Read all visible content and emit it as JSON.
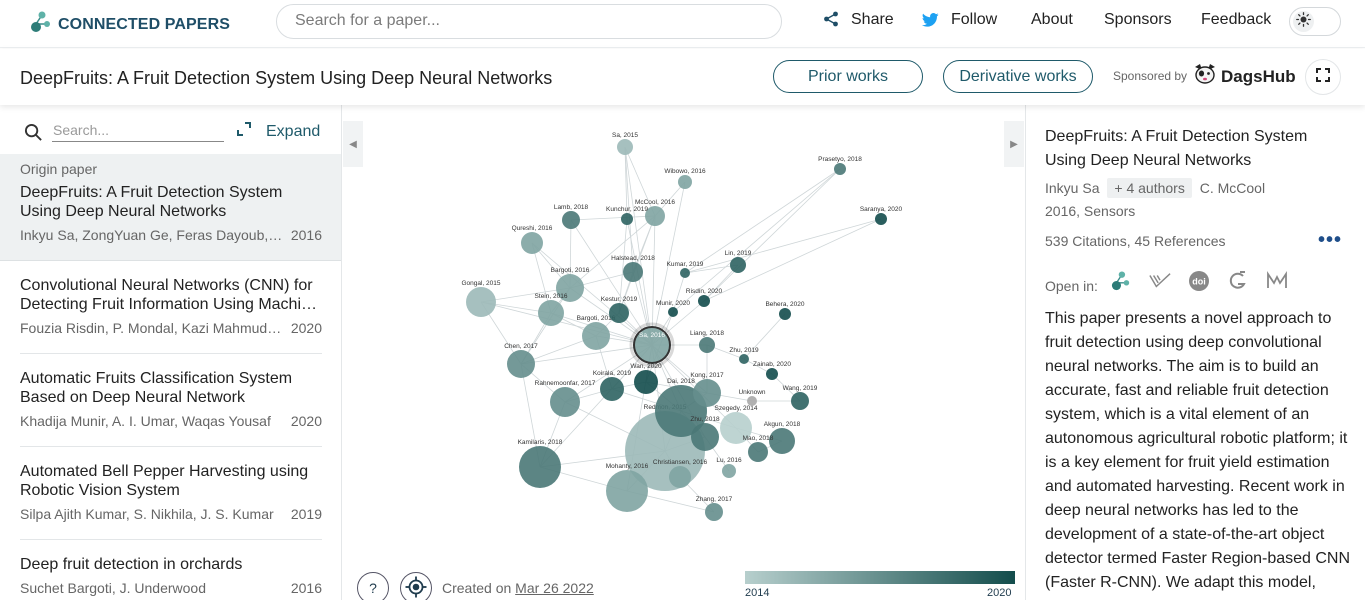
{
  "nav": {
    "logo_text": "CONNECTED PAPERS",
    "search_placeholder": "Search for a paper...",
    "share": "Share",
    "follow": "Follow",
    "about": "About",
    "sponsors": "Sponsors",
    "feedback": "Feedback",
    "theme_icon": "sun-icon"
  },
  "titlebar": {
    "title": "DeepFruits: A Fruit Detection System Using Deep Neural Networks",
    "prior_works": "Prior works",
    "derivative_works": "Derivative works",
    "sponsored_by": "Sponsored by",
    "sponsor_name": "DagsHub"
  },
  "left_panel": {
    "search_placeholder": "Search...",
    "expand": "Expand",
    "origin_label": "Origin paper",
    "origin": {
      "title": "DeepFruits: A Fruit Detection System Using Deep Neural Networks",
      "authors": "Inkyu Sa, ZongYuan Ge, Feras Dayoub, B. Upcroft, Tristan Perez, C. McCool",
      "year": "2016"
    },
    "papers": [
      {
        "title": "Convolutional Neural Networks (CNN) for Detecting Fruit Information Using Machine Learning Techniques",
        "authors": "Fouzia Risdin, P. Mondal, Kazi Mahmudul Hassan",
        "year": "2020"
      },
      {
        "title": "Automatic Fruits Classification System Based on Deep Neural Network",
        "authors": "Khadija Munir, A. I. Umar, Waqas Yousaf",
        "year": "2020"
      },
      {
        "title": "Automated Bell Pepper Harvesting using Robotic Vision System",
        "authors": "Silpa Ajith Kumar, S. Nikhila, J. S. Kumar",
        "year": "2019"
      },
      {
        "title": "Deep fruit detection in orchards",
        "authors": "Suchet Bargoti, J. Underwood",
        "year": "2016"
      }
    ]
  },
  "graph": {
    "nodes": [
      {
        "label": "Sa, 2016",
        "year": 2016,
        "size": 18,
        "origin": true
      },
      {
        "label": "Sa, 2015",
        "year": 2015,
        "size": 8
      },
      {
        "label": "Prasetyo, 2018",
        "year": 2018,
        "size": 6
      },
      {
        "label": "Wibowo, 2016",
        "year": 2016,
        "size": 7
      },
      {
        "label": "Lamb, 2018",
        "year": 2018,
        "size": 9
      },
      {
        "label": "Kunchur, 2019",
        "year": 2019,
        "size": 6
      },
      {
        "label": "McCool, 2016",
        "year": 2016,
        "size": 10
      },
      {
        "label": "Saranya, 2020",
        "year": 2020,
        "size": 6
      },
      {
        "label": "Qureshi, 2016",
        "year": 2016,
        "size": 11
      },
      {
        "label": "Lin, 2019",
        "year": 2019,
        "size": 8
      },
      {
        "label": "Halstead, 2018",
        "year": 2018,
        "size": 10
      },
      {
        "label": "Kumar, 2019",
        "year": 2019,
        "size": 5
      },
      {
        "label": "Bargoti, 2016",
        "year": 2016,
        "size": 14
      },
      {
        "label": "Gongal, 2015",
        "year": 2015,
        "size": 15
      },
      {
        "label": "Risdin, 2020",
        "year": 2020,
        "size": 6
      },
      {
        "label": "Stein, 2016",
        "year": 2016,
        "size": 13
      },
      {
        "label": "Kestur, 2019",
        "year": 2019,
        "size": 10
      },
      {
        "label": "Munir, 2020",
        "year": 2020,
        "size": 5
      },
      {
        "label": "Behera, 2020",
        "year": 2020,
        "size": 6
      },
      {
        "label": "Bargoti, 2016",
        "year": 2016,
        "size": 14
      },
      {
        "label": "Liang, 2018",
        "year": 2018,
        "size": 8
      },
      {
        "label": "Zhu, 2019",
        "year": 2019,
        "size": 5
      },
      {
        "label": "Chen, 2017",
        "year": 2017,
        "size": 14
      },
      {
        "label": "Zainab, 2020",
        "year": 2020,
        "size": 6
      },
      {
        "label": "Wan, 2020",
        "year": 2020,
        "size": 12
      },
      {
        "label": "Koirala, 2019",
        "year": 2019,
        "size": 12
      },
      {
        "label": "Kong, 2017",
        "year": 2017,
        "size": 14
      },
      {
        "label": "Rahnemoonfar, 2017",
        "year": 2017,
        "size": 15
      },
      {
        "label": "Unknown",
        "year": null,
        "size": 5
      },
      {
        "label": "Wang, 2019",
        "year": 2019,
        "size": 9
      },
      {
        "label": "Dai, 2018",
        "year": 2018,
        "size": 26
      },
      {
        "label": "Szegedy, 2014",
        "year": 2014,
        "size": 16
      },
      {
        "label": "Zhu, 2018",
        "year": 2018,
        "size": 14
      },
      {
        "label": "Akgun, 2018",
        "year": 2018,
        "size": 13
      },
      {
        "label": "Redmon, 2015",
        "year": 2015,
        "size": 40
      },
      {
        "label": "Mao, 2018",
        "year": 2018,
        "size": 10
      },
      {
        "label": "Kamilaris, 2018",
        "year": 2018,
        "size": 21
      },
      {
        "label": "Christiansen, 2016",
        "year": 2016,
        "size": 11
      },
      {
        "label": "Lu, 2016",
        "year": 2016,
        "size": 7
      },
      {
        "label": "Mohanty, 2016",
        "year": 2016,
        "size": 21
      },
      {
        "label": "Zhang, 2017",
        "year": 2017,
        "size": 9
      }
    ],
    "help_label": "?",
    "created_prefix": "Created on",
    "created_date": "Mar 26 2022",
    "legend_min": "2014",
    "legend_max": "2020",
    "legend_colors": [
      "#b7cfcd",
      "#134d4c"
    ],
    "unknown_color": "#a9a9a9"
  },
  "right_panel": {
    "title": "DeepFruits: A Fruit Detection System Using Deep Neural Networks",
    "first_author": "Inkyu Sa",
    "more_authors": "+ 4 authors",
    "last_author": "C. McCool",
    "venue": "2016, Sensors",
    "citations": "539 Citations, 45 References",
    "open_in_label": "Open in:",
    "open_in_icons": [
      "connected-papers-icon",
      "semantic-scholar-icon",
      "doi-icon",
      "google-scholar-icon",
      "mendeley-icon"
    ],
    "abstract": "This paper presents a novel approach to fruit detection using deep convolutional neural networks. The aim is to build an accurate, fast and reliable fruit detection system, which is a vital element of an autonomous agricultural robotic platform; it is a key element for fruit yield estimation and automated harvesting. Recent work in deep neural networks has led to the development of a state-of-the-art object detector termed Faster Region-based CNN (Faster R-CNN). We adapt this model,"
  },
  "colors": {
    "accent": "#1f5a6a",
    "brand": "#1f4e67",
    "twitter": "#1da1f2"
  }
}
